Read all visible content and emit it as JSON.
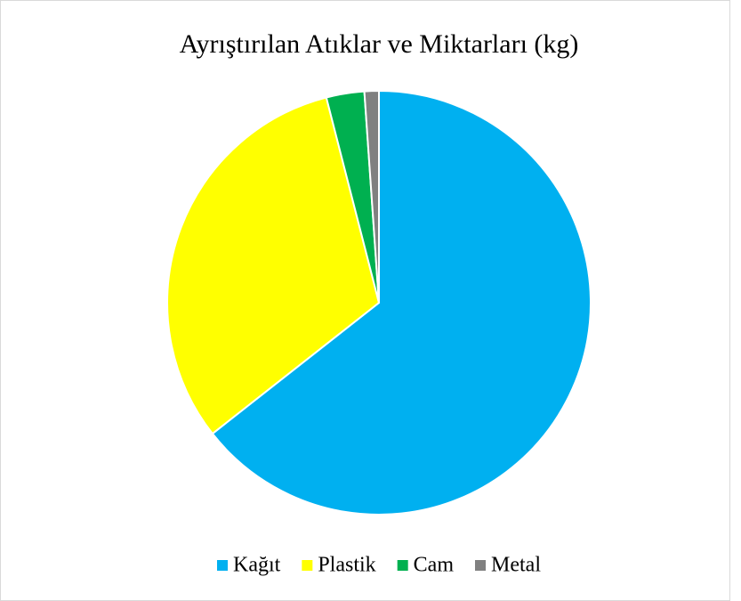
{
  "chart_data": {
    "type": "pie",
    "title": "Ayrıştırılan Atıklar ve Miktarları (kg)",
    "categories": [
      "Kağıt",
      "Plastik",
      "Cam",
      "Metal"
    ],
    "values": [
      64.4,
      31.6,
      2.9,
      1.1
    ],
    "colors": [
      "#00b0f0",
      "#ffff00",
      "#00b050",
      "#808080"
    ],
    "legend": "bottom"
  }
}
